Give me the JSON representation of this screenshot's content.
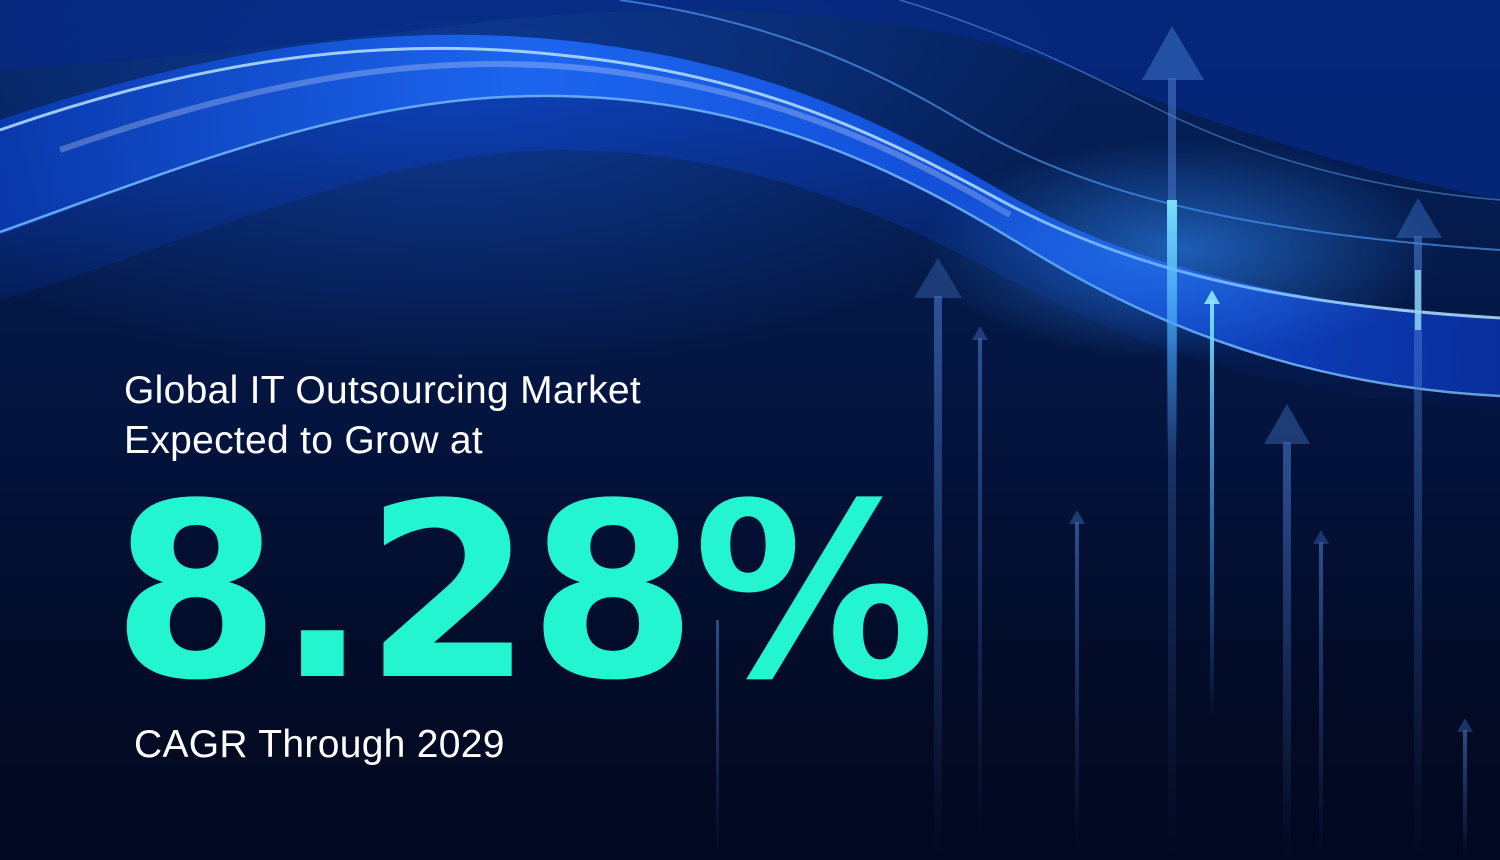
{
  "headline": {
    "line1": "Global IT Outsourcing Market",
    "line2": "Expected to Grow at"
  },
  "stat": {
    "value": "8.28%"
  },
  "subline": "CAGR Through 2029",
  "colors": {
    "background_dark": "#020b24",
    "background_blue": "#06235f",
    "wave_blue": "#1e6bff",
    "wave_highlight": "#9fd4ff",
    "stat_teal": "#22f5cf",
    "text_white": "#ffffff"
  },
  "decorations": {
    "icons": [
      "flowing-light-wave",
      "upward-arrow"
    ]
  }
}
